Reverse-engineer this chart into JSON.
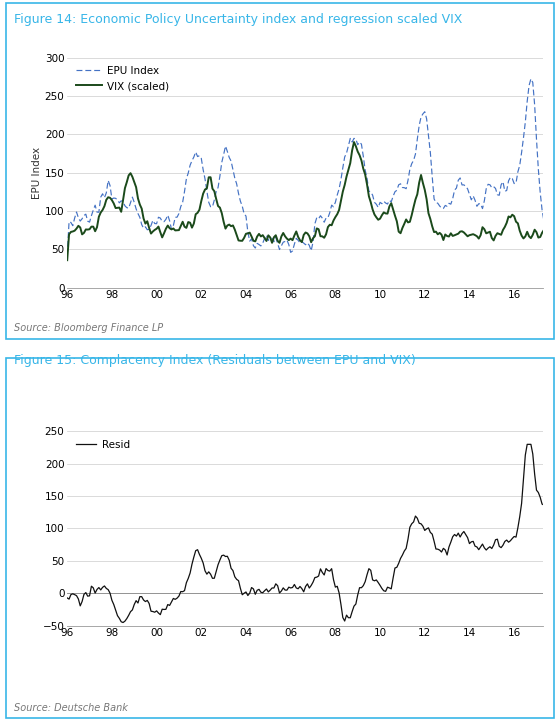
{
  "fig14_title": "Figure 14: Economic Policy Uncertainty index and regression scaled VIX",
  "fig15_title": "Figure 15: Complacency Index (Residuals between EPU and VIX)",
  "fig14_source": "Source: Bloomberg Finance LP",
  "fig15_source": "Source: Deutsche Bank",
  "fig14_ylabel": "EPU Index",
  "fig14_ylim": [
    0,
    300
  ],
  "fig14_yticks": [
    0,
    50,
    100,
    150,
    200,
    250,
    300
  ],
  "fig15_ylim": [
    -50,
    250
  ],
  "fig15_yticks": [
    -50,
    0,
    50,
    100,
    150,
    200,
    250
  ],
  "xtick_labels": [
    "96",
    "98",
    "00",
    "02",
    "04",
    "06",
    "08",
    "10",
    "12",
    "14",
    "16"
  ],
  "xtick_positions": [
    1996,
    1998,
    2000,
    2002,
    2004,
    2006,
    2008,
    2010,
    2012,
    2014,
    2016
  ],
  "title_color": "#38B6E8",
  "border_color": "#38B6E8",
  "epu_color": "#4472C4",
  "vix_color": "#1B4A1B",
  "resid_color": "#111111",
  "background_color": "#FFFFFF",
  "grid_color": "#CCCCCC",
  "source_color": "#777777"
}
